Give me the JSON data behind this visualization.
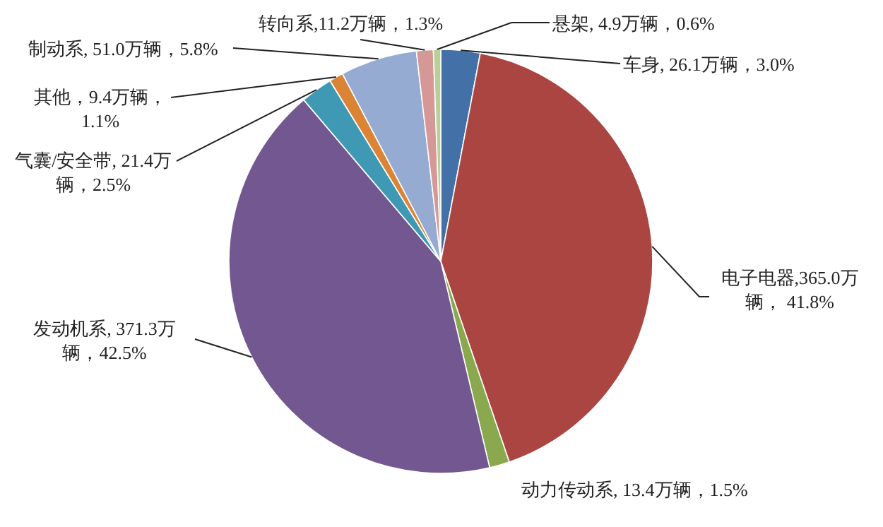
{
  "chart_data": {
    "type": "pie",
    "categories": [
      "车身",
      "电子电器",
      "动力传动系",
      "发动机系",
      "气囊/安全带",
      "其他",
      "制动系",
      "转向系",
      "悬架"
    ],
    "values": [
      26.1,
      365.0,
      13.4,
      371.3,
      21.4,
      9.4,
      51.0,
      11.2,
      4.9
    ],
    "colors": [
      "#4470a8",
      "#aa4541",
      "#8aa84e",
      "#735790",
      "#4099b4",
      "#db8435",
      "#95abd2",
      "#d59896",
      "#b8d096"
    ],
    "value_labels": [
      ", 26.1万辆，3.0%",
      ",365.0万辆， 41.8%",
      ", 13.4万辆，1.5%",
      ", 371.3万辆，42.5%",
      ", 21.4万辆，2.5%",
      "，9.4万辆，1.1%",
      ", 51.0万辆，5.8%",
      ",11.2万辆，1.3%",
      ", 4.9万辆，0.6%"
    ]
  }
}
